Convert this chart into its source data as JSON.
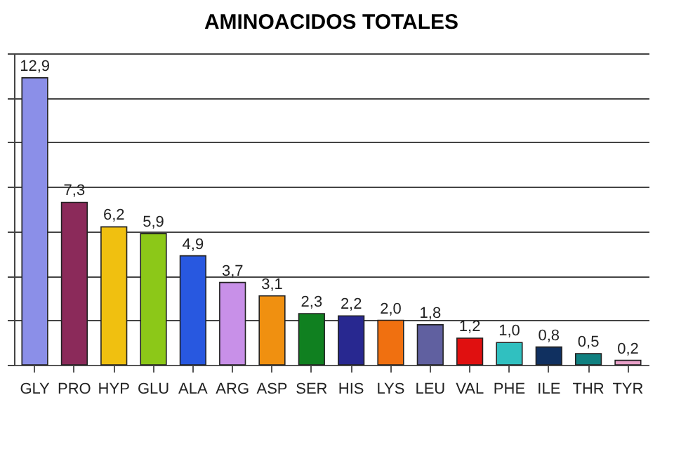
{
  "chart_data": {
    "type": "bar",
    "title": "AMINOACIDOS TOTALES",
    "categories": [
      "GLY",
      "PRO",
      "HYP",
      "GLU",
      "ALA",
      "ARG",
      "ASP",
      "SER",
      "HIS",
      "LYS",
      "LEU",
      "VAL",
      "PHE",
      "ILE",
      "THR",
      "TYR"
    ],
    "values": [
      12.9,
      7.3,
      6.2,
      5.9,
      4.9,
      3.7,
      3.1,
      2.3,
      2.2,
      2.0,
      1.8,
      1.2,
      1.0,
      0.8,
      0.5,
      0.2
    ],
    "value_labels": [
      "12,9",
      "7,3",
      "6,2",
      "5,9",
      "4,9",
      "3,7",
      "3,1",
      "2,3",
      "2,2",
      "2,0",
      "1,8",
      "1,2",
      "1,0",
      "0,8",
      "0,5",
      "0,2"
    ],
    "colors": [
      "#8b8fe8",
      "#8b2a5a",
      "#f0c010",
      "#8cc818",
      "#2858e0",
      "#c890e8",
      "#f09010",
      "#108020",
      "#282890",
      "#f07010",
      "#6060a0",
      "#e01010",
      "#30c0c0",
      "#103060",
      "#108080",
      "#e8a0c8"
    ],
    "ylim": [
      0,
      14
    ],
    "yticks": [
      {
        "value": 0,
        "label": null
      },
      {
        "value": 2,
        "label": null
      },
      {
        "value": 4,
        "label": null
      },
      {
        "value": 6,
        "label": null
      },
      {
        "value": 8,
        "label": null
      },
      {
        "value": 10,
        "label": null
      },
      {
        "value": 12,
        "label": null
      },
      {
        "value": 14,
        "label": null
      }
    ],
    "grid": "y",
    "tick_labels": "x"
  }
}
